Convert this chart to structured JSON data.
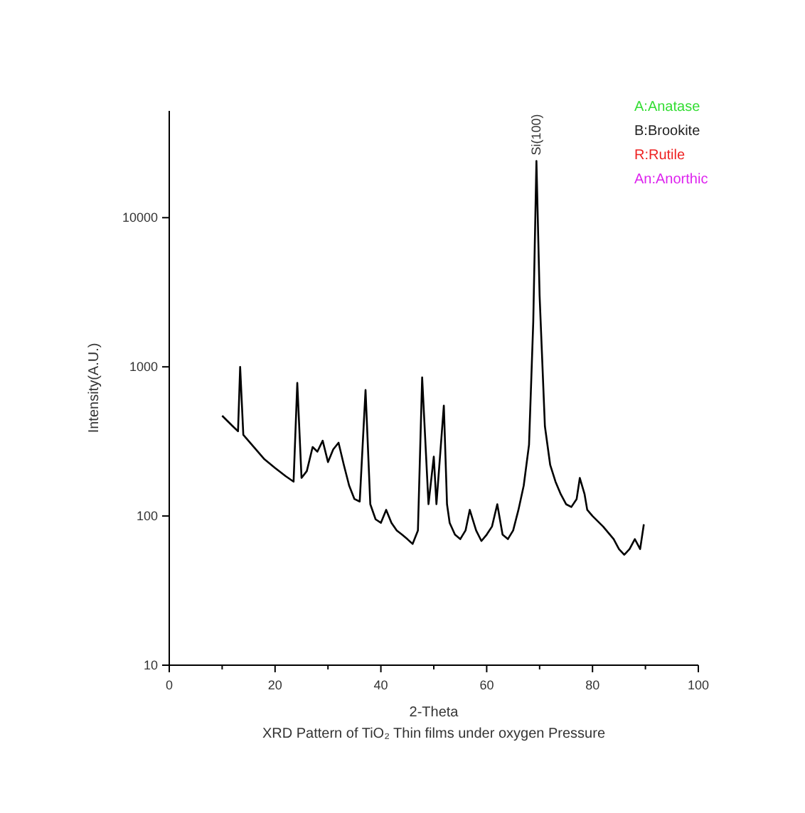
{
  "chart_data": {
    "type": "line",
    "title": "XRD Pattern of TiO₂ Thin films under oxygen Pressure",
    "xlabel": "2-Theta",
    "ylabel": "Intensity(A.U.)",
    "log": "y",
    "xlim": [
      0,
      100
    ],
    "ylim": [
      10,
      52000
    ],
    "xticks": [
      0,
      {
        "value": 10,
        "label": null
      },
      20,
      {
        "value": 30,
        "label": null
      },
      40,
      {
        "value": 50,
        "label": null
      },
      60,
      {
        "value": 70,
        "label": null
      },
      80,
      {
        "value": 90,
        "label": null
      },
      100
    ],
    "yticks": [
      10,
      100,
      1000,
      10000
    ],
    "series": [
      {
        "color": "#000000",
        "x": [
          10,
          12,
          13,
          13.4,
          14,
          16,
          18,
          20,
          22,
          23.5,
          24.2,
          25,
          26,
          27.1,
          28,
          29,
          30,
          31,
          32,
          33,
          34,
          35,
          36,
          37.1,
          38,
          39,
          40,
          41,
          42,
          43,
          44,
          45,
          46,
          47,
          47.8,
          49,
          50,
          50.5,
          51.9,
          52.5,
          53,
          54,
          55,
          56,
          56.8,
          58,
          59,
          60,
          61,
          62,
          63,
          64,
          65,
          66,
          67,
          68,
          68.8,
          69.4,
          70,
          71,
          72,
          73,
          74,
          75,
          76,
          77,
          77.6,
          78.5,
          79,
          80,
          82,
          84,
          85,
          86,
          87,
          88,
          89,
          89.7
        ],
        "values": [
          470,
          400,
          370,
          1000,
          350,
          290,
          240,
          210,
          185,
          170,
          780,
          180,
          200,
          290,
          270,
          320,
          230,
          280,
          310,
          220,
          160,
          130,
          125,
          700,
          120,
          95,
          90,
          110,
          90,
          80,
          75,
          70,
          65,
          80,
          850,
          120,
          250,
          120,
          550,
          120,
          90,
          75,
          70,
          80,
          110,
          80,
          68,
          75,
          85,
          120,
          75,
          70,
          80,
          110,
          160,
          300,
          2000,
          24000,
          3000,
          400,
          220,
          170,
          140,
          120,
          115,
          130,
          180,
          140,
          110,
          100,
          85,
          70,
          60,
          55,
          60,
          70,
          60,
          88
        ]
      }
    ],
    "annotations": [
      {
        "text": "Si(100)",
        "x": 69.4,
        "y": 24000
      },
      "A:Anatase",
      "B:Brookite",
      "R:Rutile",
      "An:Anorthic"
    ]
  }
}
